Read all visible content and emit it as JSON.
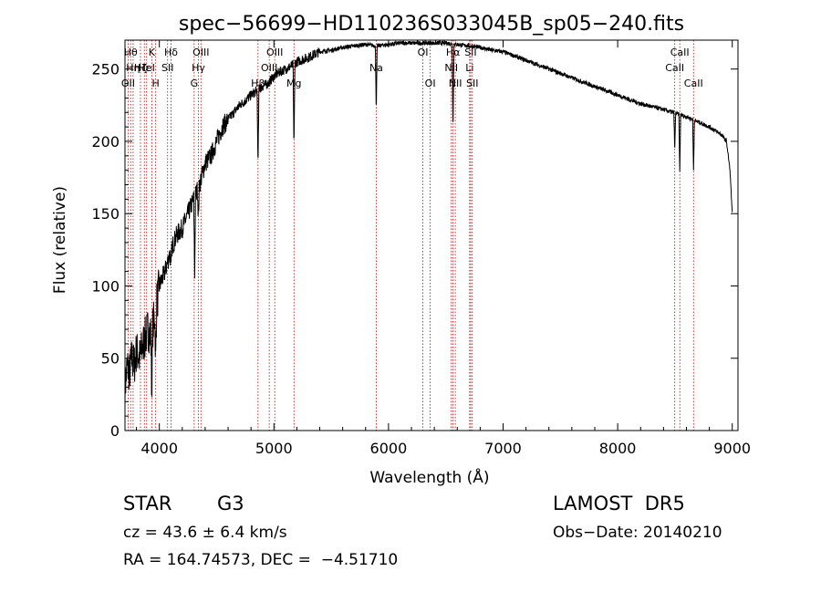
{
  "chart_data": {
    "type": "line",
    "title": "spec−56699−HD110236S033045B_sp05−240.fits",
    "xlabel": "Wavelength (Å)",
    "ylabel": "Flux (relative)",
    "xlim": [
      3700,
      9050
    ],
    "ylim": [
      0,
      270
    ],
    "x_ticks": [
      4000,
      5000,
      6000,
      7000,
      8000,
      9000
    ],
    "y_ticks": [
      0,
      50,
      100,
      150,
      200,
      250
    ],
    "grid": false,
    "line_color": "#000000",
    "marker_color": "#c00000",
    "spectrum": {
      "x": [
        3700,
        3720,
        3740,
        3760,
        3780,
        3800,
        3830,
        3860,
        3900,
        3930,
        3960,
        4000,
        4050,
        4100,
        4150,
        4200,
        4250,
        4300,
        4350,
        4400,
        4450,
        4500,
        4550,
        4600,
        4650,
        4700,
        4750,
        4800,
        4850,
        4900,
        4950,
        5000,
        5050,
        5100,
        5150,
        5200,
        5300,
        5400,
        5500,
        5600,
        5700,
        5800,
        5900,
        6000,
        6100,
        6200,
        6300,
        6400,
        6500,
        6600,
        6700,
        6800,
        6900,
        7000,
        7200,
        7400,
        7600,
        7800,
        8000,
        8200,
        8400,
        8600,
        8800,
        8900,
        8950,
        8980,
        9000
      ],
      "y": [
        30,
        45,
        40,
        50,
        45,
        55,
        50,
        60,
        70,
        65,
        80,
        100,
        110,
        125,
        135,
        140,
        150,
        160,
        170,
        185,
        190,
        200,
        210,
        215,
        220,
        225,
        228,
        232,
        235,
        238,
        240,
        245,
        248,
        250,
        252,
        255,
        258,
        262,
        263,
        265,
        266,
        267,
        266,
        267,
        268,
        268,
        268,
        268,
        268,
        267,
        266,
        265,
        263,
        262,
        256,
        250,
        244,
        238,
        232,
        226,
        222,
        217,
        210,
        205,
        200,
        180,
        150
      ]
    },
    "absorption": [
      {
        "x": 3934,
        "depth": 40
      },
      {
        "x": 3968,
        "depth": 35
      },
      {
        "x": 4102,
        "depth": 15
      },
      {
        "x": 4308,
        "depth": 55
      },
      {
        "x": 4341,
        "depth": 20
      },
      {
        "x": 4861,
        "depth": 55
      },
      {
        "x": 5175,
        "depth": 60
      },
      {
        "x": 5893,
        "depth": 45
      },
      {
        "x": 6563,
        "depth": 60
      },
      {
        "x": 8498,
        "depth": 25
      },
      {
        "x": 8542,
        "depth": 40
      },
      {
        "x": 8662,
        "depth": 35
      }
    ],
    "line_markers": [
      {
        "x": 3727,
        "label": "OII",
        "row": 3
      },
      {
        "x": 3750,
        "label": "Hθ",
        "row": 1
      },
      {
        "x": 3771,
        "label": "Hη",
        "row": 2
      },
      {
        "x": 3835,
        "label": "Hζ",
        "row": 2
      },
      {
        "x": 3869,
        "label": "Hε",
        "row": 2
      },
      {
        "x": 3889,
        "label": "HeI",
        "row": 2
      },
      {
        "x": 3934,
        "label": "K",
        "row": 1
      },
      {
        "x": 3968,
        "label": "H",
        "row": 3
      },
      {
        "x": 4102,
        "label": "Hδ",
        "row": 1
      },
      {
        "x": 4072,
        "label": "SII",
        "row": 2
      },
      {
        "x": 4304,
        "label": "G",
        "row": 3
      },
      {
        "x": 4341,
        "label": "Hγ",
        "row": 2
      },
      {
        "x": 4363,
        "label": "OIII",
        "row": 1
      },
      {
        "x": 4861,
        "label": "Hβ",
        "row": 3
      },
      {
        "x": 4959,
        "label": "OIII",
        "row": 2
      },
      {
        "x": 5007,
        "label": "OIII",
        "row": 1
      },
      {
        "x": 5175,
        "label": "Mg",
        "row": 3
      },
      {
        "x": 5893,
        "label": "Na",
        "row": 2
      },
      {
        "x": 6300,
        "label": "OI",
        "row": 1
      },
      {
        "x": 6364,
        "label": "OI",
        "row": 3
      },
      {
        "x": 6548,
        "label": "NII",
        "row": 2
      },
      {
        "x": 6563,
        "label": "Hα",
        "row": 1
      },
      {
        "x": 6583,
        "label": "NII",
        "row": 3
      },
      {
        "x": 6708,
        "label": "Li",
        "row": 2
      },
      {
        "x": 6717,
        "label": "SII",
        "row": 1
      },
      {
        "x": 6731,
        "label": "SII",
        "row": 3
      },
      {
        "x": 8498,
        "label": "CaII",
        "row": 2
      },
      {
        "x": 8542,
        "label": "CaII",
        "row": 1
      },
      {
        "x": 8662,
        "label": "CaII",
        "row": 3
      }
    ]
  },
  "info": {
    "object_class": "STAR",
    "subclass": "G3",
    "survey": "LAMOST  DR5",
    "cz": "cz = 43.6 ± 6.4 km/s",
    "obs_date": "Obs−Date: 20140210",
    "coords": "RA = 164.74573, DEC =  −4.51710"
  }
}
